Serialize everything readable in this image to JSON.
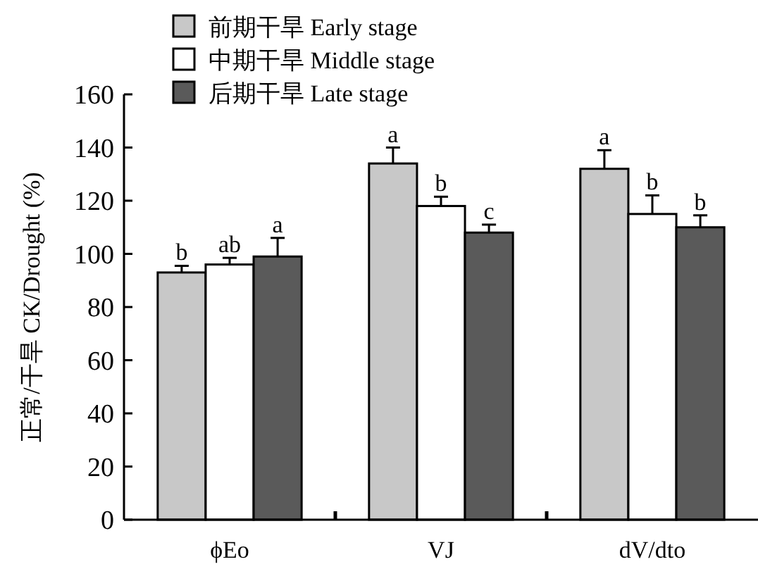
{
  "chart_data": {
    "type": "bar",
    "ylabel": "正常/干旱 CK/Drought (%)",
    "categories": [
      "ϕEo",
      "VJ",
      "dV/dto"
    ],
    "series": [
      {
        "name": "前期干旱 Early stage",
        "color": "#c8c8c8",
        "values": [
          93,
          134,
          132
        ],
        "errors": [
          [
            93,
            95.5
          ],
          [
            134,
            140
          ],
          [
            132,
            139
          ]
        ],
        "value_labels": [
          "b",
          "a",
          "a"
        ]
      },
      {
        "name": "中期干旱 Middle stage",
        "color": "#ffffff",
        "values": [
          96,
          118,
          115
        ],
        "errors": [
          [
            96,
            98.5
          ],
          [
            118,
            121.5
          ],
          [
            115,
            122
          ]
        ],
        "value_labels": [
          "ab",
          "b",
          "b"
        ]
      },
      {
        "name": "后期干旱 Late stage",
        "color": "#5a5a5a",
        "values": [
          99,
          108,
          110
        ],
        "errors": [
          [
            99,
            106
          ],
          [
            108,
            111
          ],
          [
            110,
            114.5
          ]
        ],
        "value_labels": [
          "a",
          "c",
          "b"
        ]
      }
    ],
    "ylim": [
      0,
      160
    ],
    "yticks": [
      0,
      20,
      40,
      60,
      80,
      100,
      120,
      140,
      160
    ],
    "legend": "top left",
    "grid": false
  }
}
